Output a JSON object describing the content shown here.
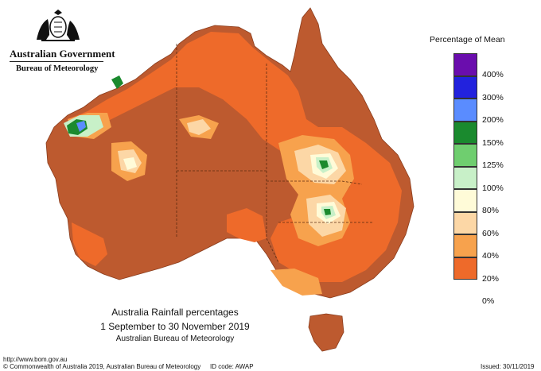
{
  "header": {
    "org": "Australian Government",
    "bureau": "Bureau of Meteorology",
    "crest_icon": "commonwealth-coat-of-arms"
  },
  "legend": {
    "title": "Percentage of Mean",
    "labels": [
      "400%",
      "300%",
      "200%",
      "150%",
      "125%",
      "100%",
      "80%",
      "60%",
      "40%",
      "20%",
      "0%"
    ],
    "colors": [
      "#6a0dad",
      "#2222dd",
      "#5a8cff",
      "#1a8a2e",
      "#6fce6f",
      "#c8f0c8",
      "#fffbd8",
      "#fcd7a6",
      "#f7a24d",
      "#ee6a2a",
      "#bd5a2f"
    ]
  },
  "map_colors": {
    "ocean": "#ffffff",
    "land_low": "#bd5a2f",
    "land_mid": "#ee6a2a",
    "land_high": "#f7a24d",
    "land_higher": "#fcd7a6",
    "near_mean": "#fffbd8",
    "above_mean": "#c8f0c8",
    "well_above": "#1a8a2e",
    "very_high": "#5a8cff"
  },
  "caption": {
    "title": "Australia Rainfall percentages",
    "period": "1 September to 30 November 2019",
    "source": "Australian Bureau of Meteorology"
  },
  "footer": {
    "url": "http://www.bom.gov.au",
    "copyright": "© Commonwealth of Australia 2019, Australian Bureau of Meteorology",
    "id_code": "ID code: AWAP",
    "issued": "Issued: 30/11/2019"
  }
}
